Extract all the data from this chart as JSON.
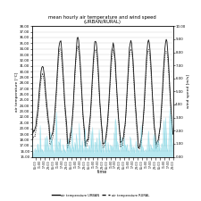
{
  "title_line1": "mean hourly air temperature and wind speed",
  "title_line2": "(URBAN/RURAL)",
  "ylabel_left": "air temperature [°C]",
  "ylabel_right": "wind speed [m/s]",
  "xlabel": "time",
  "ylim_left": [
    15.0,
    38.0
  ],
  "ylim_right": [
    0.0,
    10.0
  ],
  "legend_items": [
    "air temperature URBAN",
    "air temperature RURAL"
  ],
  "urban_color": "#111111",
  "rural_color": "#444444",
  "wind_color": "#70d0e0",
  "background": "#ffffff",
  "grid_color": "#cccccc",
  "n_days": 8,
  "hours_per_day": 24,
  "day_peak_urban": [
    31.0,
    35.5,
    36.0,
    35.5,
    35.0,
    35.5,
    35.5,
    35.5
  ],
  "day_peak_rural": [
    29.5,
    34.0,
    34.5,
    34.0,
    33.5,
    34.0,
    34.0,
    34.0
  ],
  "day_base_urban": [
    19.0,
    18.0,
    17.0,
    17.0,
    17.0,
    17.0,
    16.5,
    17.0
  ],
  "day_base_rural": [
    18.0,
    17.0,
    16.5,
    16.5,
    16.5,
    16.5,
    16.0,
    16.5
  ]
}
